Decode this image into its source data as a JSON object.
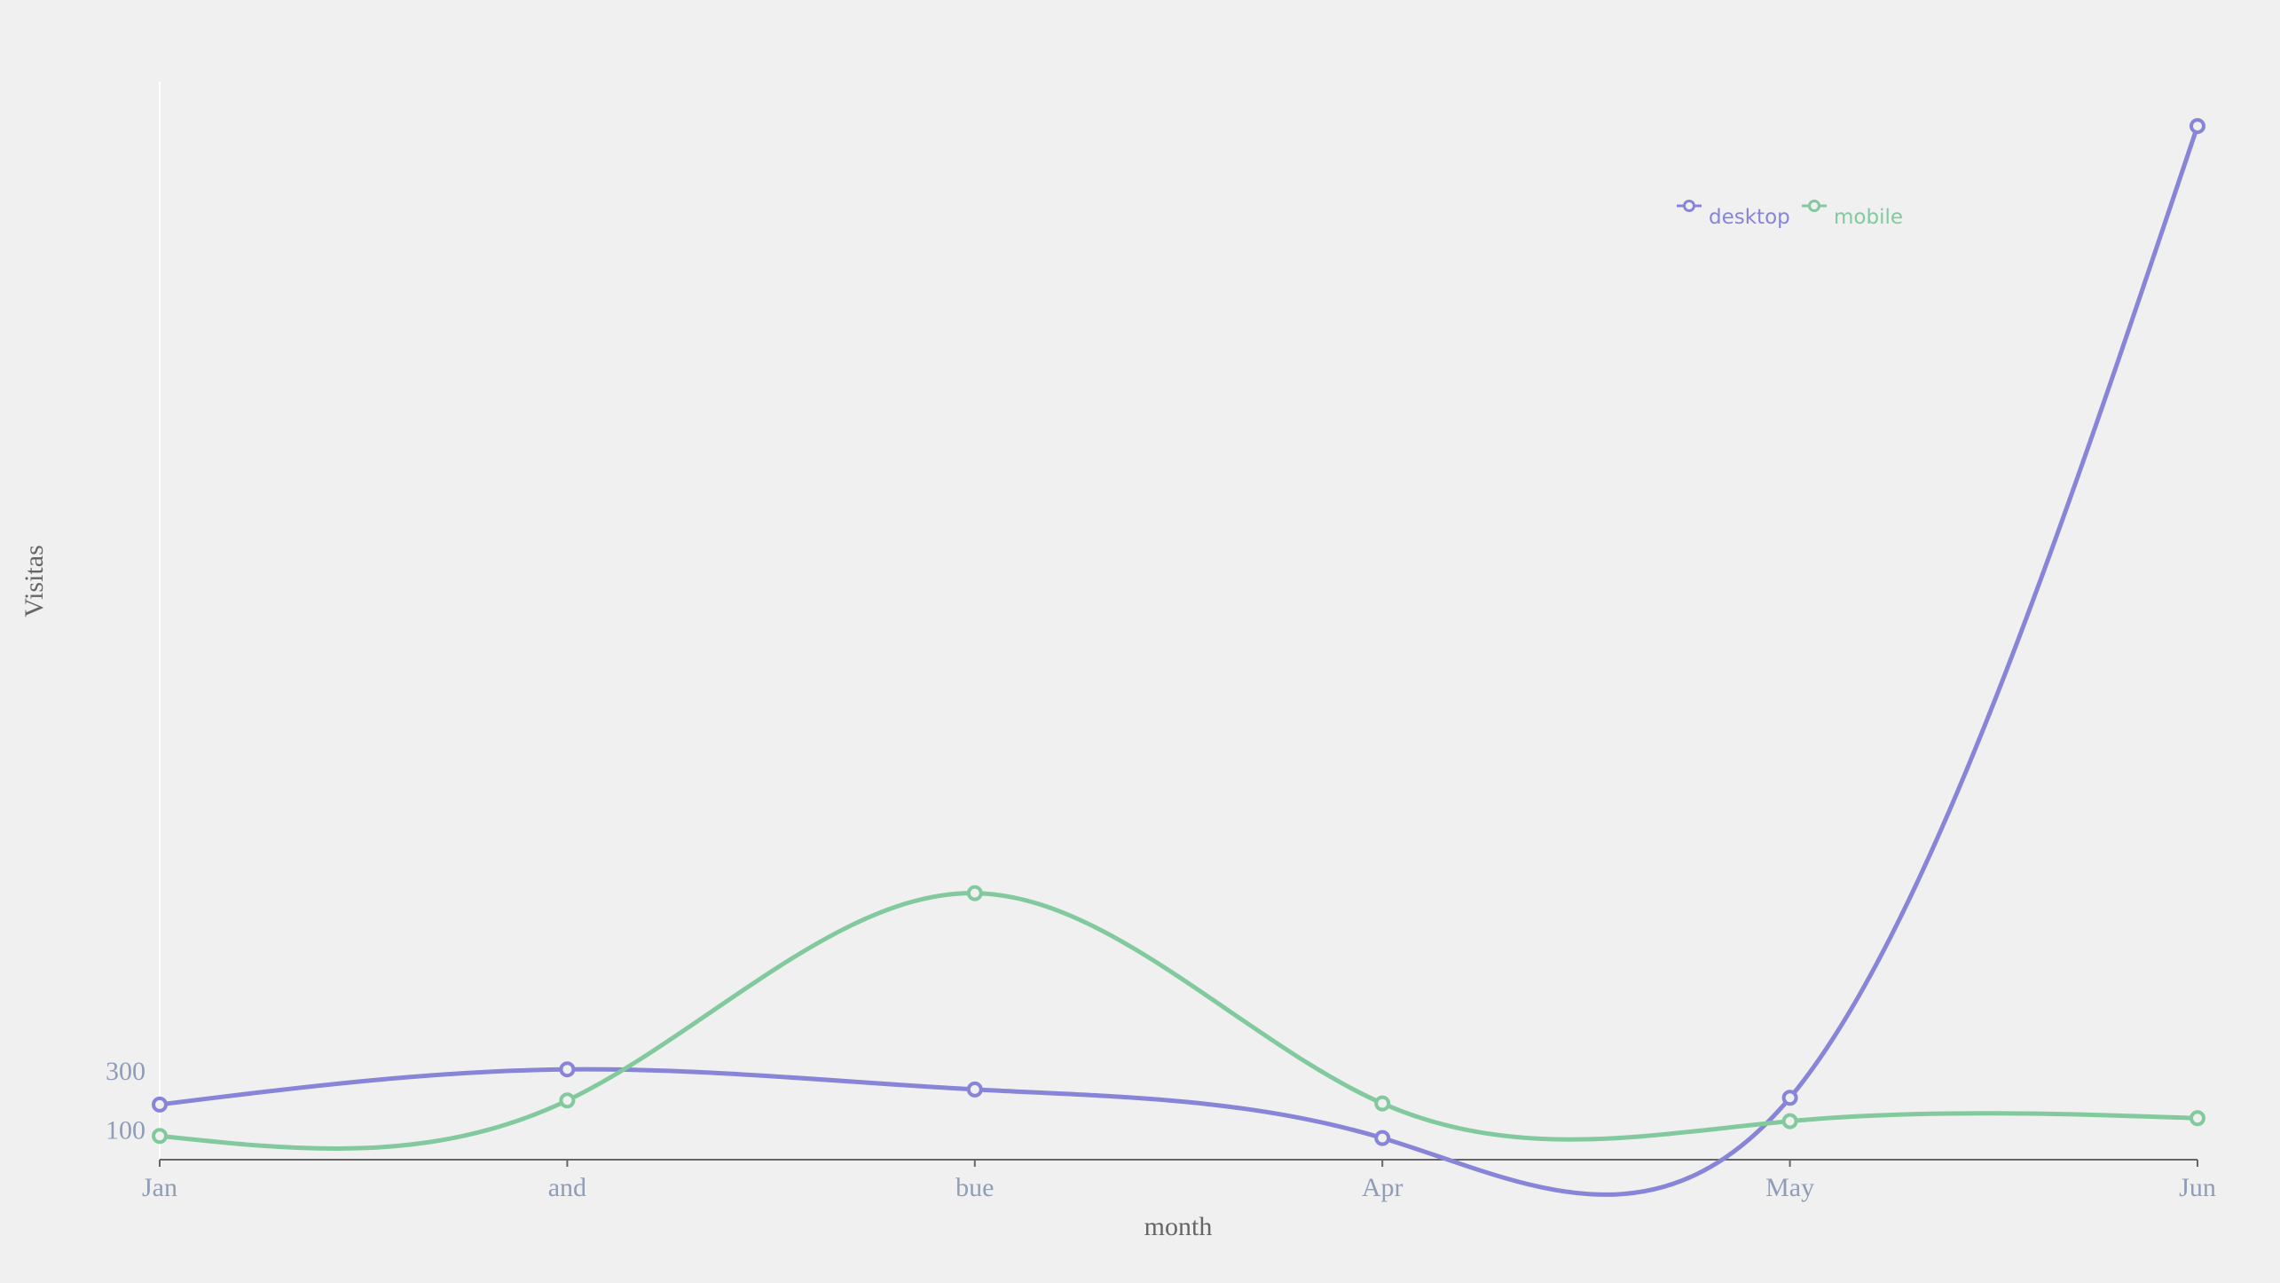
{
  "chart_data": {
    "type": "line",
    "categories": [
      "Jan",
      "and",
      "bue",
      "Apr",
      "May",
      "Jun"
    ],
    "series": [
      {
        "name": "desktop",
        "color": "#8884d8",
        "values": [
          186,
          305,
          237,
          73,
          209,
          3490
        ]
      },
      {
        "name": "mobile",
        "color": "#82ca9d",
        "values": [
          80,
          200,
          900,
          190,
          130,
          140
        ]
      }
    ],
    "xlabel": "month",
    "ylabel": "Visitas",
    "yticks": [
      100,
      300
    ],
    "ylim": [
      0,
      3640
    ],
    "legend": {
      "position": "top-right"
    },
    "grid": false
  }
}
